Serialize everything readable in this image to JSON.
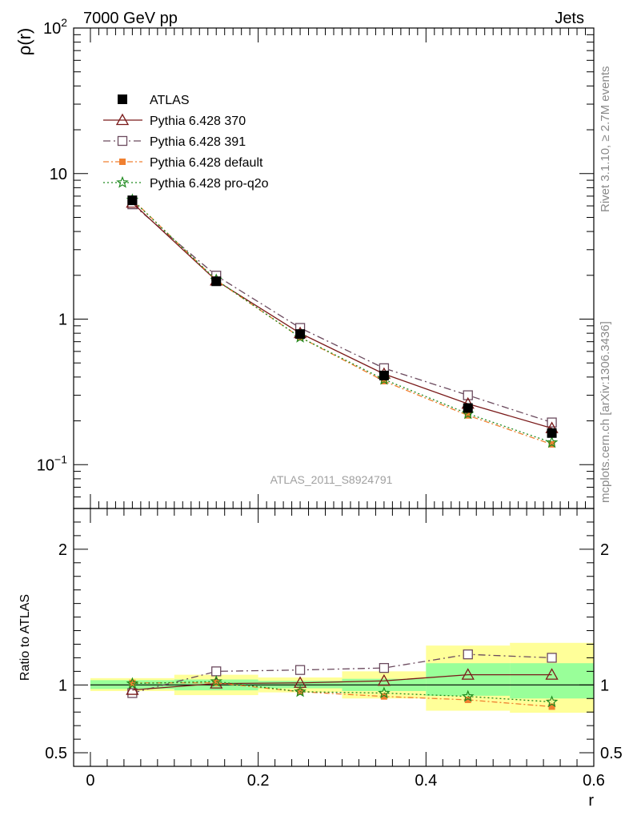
{
  "header": {
    "left": "7000 GeV pp",
    "right": "Jets"
  },
  "side_text": {
    "rivet": "Rivet 3.1.10, ≥ 2.7M events",
    "mcplots": "mcplots.cern.ch [arXiv:1306.3436]"
  },
  "analysis_label": "ATLAS_2011_S8924791",
  "colors": {
    "atlas": "#000000",
    "p370": "#7a1a1a",
    "p391": "#6b4a5e",
    "default": "#f08030",
    "proq2o": "#1f8a1f",
    "band_inner": "#99ff99",
    "band_outer": "#ffff99"
  },
  "chart_data": [
    {
      "type": "line",
      "ylabel": "ρ(r)",
      "yscale": "log",
      "ylim": [
        0.05,
        100
      ],
      "xlim": [
        -0.02,
        0.6
      ],
      "yticks": [
        {
          "v": 0.1,
          "base": "10",
          "exp": "−1"
        },
        {
          "v": 1,
          "base": "1",
          "exp": ""
        },
        {
          "v": 10,
          "base": "10",
          "exp": ""
        },
        {
          "v": 100,
          "base": "10",
          "exp": "2"
        }
      ],
      "x": [
        0.05,
        0.15,
        0.25,
        0.35,
        0.45,
        0.55
      ],
      "legend_position": "top-left",
      "series": [
        {
          "key": "atlas",
          "name": "ATLAS",
          "marker": "square-filled",
          "values": [
            6.55,
            1.82,
            0.79,
            0.41,
            0.245,
            0.165
          ]
        },
        {
          "key": "p370",
          "name": "Pythia 6.428 370",
          "marker": "triangle-open",
          "dash": "none",
          "values": [
            6.3,
            1.84,
            0.8,
            0.42,
            0.262,
            0.178
          ]
        },
        {
          "key": "p391",
          "name": "Pythia 6.428 391",
          "marker": "square-open",
          "dash": "9,4,2,4",
          "values": [
            6.15,
            1.99,
            0.87,
            0.46,
            0.3,
            0.195
          ]
        },
        {
          "key": "default",
          "name": "Pythia 6.428 default",
          "marker": "square-filled-small",
          "dash": "7,3,2,3",
          "values": [
            6.65,
            1.85,
            0.75,
            0.375,
            0.218,
            0.138
          ]
        },
        {
          "key": "proq2o",
          "name": "Pythia 6.428 pro-q2o",
          "marker": "star",
          "dash": "2,3",
          "values": [
            6.6,
            1.86,
            0.75,
            0.385,
            0.224,
            0.142
          ]
        }
      ]
    },
    {
      "type": "line",
      "ylabel": "Ratio to ATLAS",
      "xlabel": "r",
      "ylim": [
        0.4,
        2.3
      ],
      "xlim": [
        -0.02,
        0.6
      ],
      "yticks": [
        0.5,
        1,
        2
      ],
      "ytick_labels": [
        "0.5",
        "1",
        "2"
      ],
      "xticks": [
        0,
        0.2,
        0.4,
        0.6
      ],
      "xtick_labels": [
        "0",
        "0.2",
        "0.4",
        "0.6"
      ],
      "x": [
        0.05,
        0.15,
        0.25,
        0.35,
        0.45,
        0.55
      ],
      "bins": [
        [
          0,
          0.1
        ],
        [
          0.1,
          0.2
        ],
        [
          0.2,
          0.3
        ],
        [
          0.3,
          0.4
        ],
        [
          0.4,
          0.5
        ],
        [
          0.5,
          0.6
        ]
      ],
      "band_inner": [
        [
          0.97,
          1.035
        ],
        [
          0.96,
          1.04
        ],
        [
          0.975,
          1.03
        ],
        [
          0.955,
          1.045
        ],
        [
          0.92,
          1.16
        ],
        [
          0.9,
          1.16
        ]
      ],
      "band_outer": [
        [
          0.955,
          1.05
        ],
        [
          0.925,
          1.075
        ],
        [
          0.945,
          1.055
        ],
        [
          0.9,
          1.1
        ],
        [
          0.81,
          1.29
        ],
        [
          0.795,
          1.31
        ]
      ],
      "series": [
        {
          "key": "p370",
          "name": "Pythia 6.428 370",
          "marker": "triangle-open",
          "dash": "none",
          "values": [
            0.963,
            1.01,
            1.015,
            1.03,
            1.075,
            1.075
          ]
        },
        {
          "key": "p391",
          "name": "Pythia 6.428 391",
          "marker": "square-open",
          "dash": "9,4,2,4",
          "values": [
            0.94,
            1.1,
            1.11,
            1.125,
            1.225,
            1.2
          ]
        },
        {
          "key": "default",
          "name": "Pythia 6.428 default",
          "marker": "square-filled-small",
          "dash": "7,3,2,3",
          "values": [
            1.015,
            1.015,
            0.95,
            0.915,
            0.89,
            0.84
          ]
        },
        {
          "key": "proq2o",
          "name": "Pythia 6.428 pro-q2o",
          "marker": "star",
          "dash": "2,3",
          "values": [
            1.01,
            1.025,
            0.95,
            0.94,
            0.915,
            0.875
          ]
        }
      ]
    }
  ]
}
